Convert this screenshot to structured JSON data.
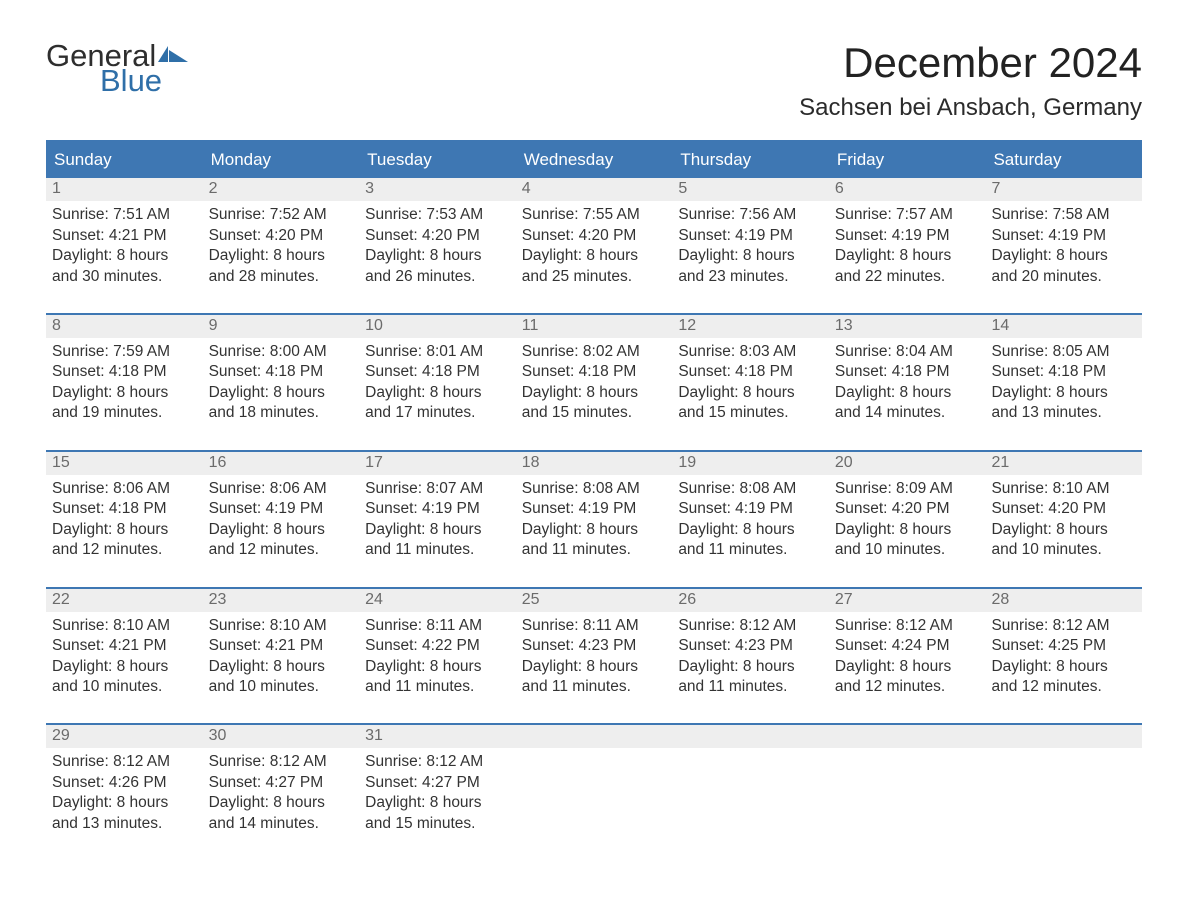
{
  "brand": {
    "word1": "General",
    "word2": "Blue",
    "flag_color": "#2f6fa8",
    "text1_color": "#2e2e2e"
  },
  "title": "December 2024",
  "location": "Sachsen bei Ansbach, Germany",
  "colors": {
    "header_bg": "#3e77b3",
    "header_text": "#ffffff",
    "row_divider": "#3e77b3",
    "daynum_bg": "#eeeeee",
    "daynum_text": "#6b6b6b",
    "body_text": "#333333",
    "page_bg": "#ffffff"
  },
  "typography": {
    "title_fontsize": 42,
    "location_fontsize": 24,
    "dayhead_fontsize": 17,
    "daynum_fontsize": 16,
    "body_fontsize": 15.5
  },
  "day_headers": [
    "Sunday",
    "Monday",
    "Tuesday",
    "Wednesday",
    "Thursday",
    "Friday",
    "Saturday"
  ],
  "weeks": [
    [
      {
        "n": "1",
        "sunrise": "Sunrise: 7:51 AM",
        "sunset": "Sunset: 4:21 PM",
        "d1": "Daylight: 8 hours",
        "d2": "and 30 minutes."
      },
      {
        "n": "2",
        "sunrise": "Sunrise: 7:52 AM",
        "sunset": "Sunset: 4:20 PM",
        "d1": "Daylight: 8 hours",
        "d2": "and 28 minutes."
      },
      {
        "n": "3",
        "sunrise": "Sunrise: 7:53 AM",
        "sunset": "Sunset: 4:20 PM",
        "d1": "Daylight: 8 hours",
        "d2": "and 26 minutes."
      },
      {
        "n": "4",
        "sunrise": "Sunrise: 7:55 AM",
        "sunset": "Sunset: 4:20 PM",
        "d1": "Daylight: 8 hours",
        "d2": "and 25 minutes."
      },
      {
        "n": "5",
        "sunrise": "Sunrise: 7:56 AM",
        "sunset": "Sunset: 4:19 PM",
        "d1": "Daylight: 8 hours",
        "d2": "and 23 minutes."
      },
      {
        "n": "6",
        "sunrise": "Sunrise: 7:57 AM",
        "sunset": "Sunset: 4:19 PM",
        "d1": "Daylight: 8 hours",
        "d2": "and 22 minutes."
      },
      {
        "n": "7",
        "sunrise": "Sunrise: 7:58 AM",
        "sunset": "Sunset: 4:19 PM",
        "d1": "Daylight: 8 hours",
        "d2": "and 20 minutes."
      }
    ],
    [
      {
        "n": "8",
        "sunrise": "Sunrise: 7:59 AM",
        "sunset": "Sunset: 4:18 PM",
        "d1": "Daylight: 8 hours",
        "d2": "and 19 minutes."
      },
      {
        "n": "9",
        "sunrise": "Sunrise: 8:00 AM",
        "sunset": "Sunset: 4:18 PM",
        "d1": "Daylight: 8 hours",
        "d2": "and 18 minutes."
      },
      {
        "n": "10",
        "sunrise": "Sunrise: 8:01 AM",
        "sunset": "Sunset: 4:18 PM",
        "d1": "Daylight: 8 hours",
        "d2": "and 17 minutes."
      },
      {
        "n": "11",
        "sunrise": "Sunrise: 8:02 AM",
        "sunset": "Sunset: 4:18 PM",
        "d1": "Daylight: 8 hours",
        "d2": "and 15 minutes."
      },
      {
        "n": "12",
        "sunrise": "Sunrise: 8:03 AM",
        "sunset": "Sunset: 4:18 PM",
        "d1": "Daylight: 8 hours",
        "d2": "and 15 minutes."
      },
      {
        "n": "13",
        "sunrise": "Sunrise: 8:04 AM",
        "sunset": "Sunset: 4:18 PM",
        "d1": "Daylight: 8 hours",
        "d2": "and 14 minutes."
      },
      {
        "n": "14",
        "sunrise": "Sunrise: 8:05 AM",
        "sunset": "Sunset: 4:18 PM",
        "d1": "Daylight: 8 hours",
        "d2": "and 13 minutes."
      }
    ],
    [
      {
        "n": "15",
        "sunrise": "Sunrise: 8:06 AM",
        "sunset": "Sunset: 4:18 PM",
        "d1": "Daylight: 8 hours",
        "d2": "and 12 minutes."
      },
      {
        "n": "16",
        "sunrise": "Sunrise: 8:06 AM",
        "sunset": "Sunset: 4:19 PM",
        "d1": "Daylight: 8 hours",
        "d2": "and 12 minutes."
      },
      {
        "n": "17",
        "sunrise": "Sunrise: 8:07 AM",
        "sunset": "Sunset: 4:19 PM",
        "d1": "Daylight: 8 hours",
        "d2": "and 11 minutes."
      },
      {
        "n": "18",
        "sunrise": "Sunrise: 8:08 AM",
        "sunset": "Sunset: 4:19 PM",
        "d1": "Daylight: 8 hours",
        "d2": "and 11 minutes."
      },
      {
        "n": "19",
        "sunrise": "Sunrise: 8:08 AM",
        "sunset": "Sunset: 4:19 PM",
        "d1": "Daylight: 8 hours",
        "d2": "and 11 minutes."
      },
      {
        "n": "20",
        "sunrise": "Sunrise: 8:09 AM",
        "sunset": "Sunset: 4:20 PM",
        "d1": "Daylight: 8 hours",
        "d2": "and 10 minutes."
      },
      {
        "n": "21",
        "sunrise": "Sunrise: 8:10 AM",
        "sunset": "Sunset: 4:20 PM",
        "d1": "Daylight: 8 hours",
        "d2": "and 10 minutes."
      }
    ],
    [
      {
        "n": "22",
        "sunrise": "Sunrise: 8:10 AM",
        "sunset": "Sunset: 4:21 PM",
        "d1": "Daylight: 8 hours",
        "d2": "and 10 minutes."
      },
      {
        "n": "23",
        "sunrise": "Sunrise: 8:10 AM",
        "sunset": "Sunset: 4:21 PM",
        "d1": "Daylight: 8 hours",
        "d2": "and 10 minutes."
      },
      {
        "n": "24",
        "sunrise": "Sunrise: 8:11 AM",
        "sunset": "Sunset: 4:22 PM",
        "d1": "Daylight: 8 hours",
        "d2": "and 11 minutes."
      },
      {
        "n": "25",
        "sunrise": "Sunrise: 8:11 AM",
        "sunset": "Sunset: 4:23 PM",
        "d1": "Daylight: 8 hours",
        "d2": "and 11 minutes."
      },
      {
        "n": "26",
        "sunrise": "Sunrise: 8:12 AM",
        "sunset": "Sunset: 4:23 PM",
        "d1": "Daylight: 8 hours",
        "d2": "and 11 minutes."
      },
      {
        "n": "27",
        "sunrise": "Sunrise: 8:12 AM",
        "sunset": "Sunset: 4:24 PM",
        "d1": "Daylight: 8 hours",
        "d2": "and 12 minutes."
      },
      {
        "n": "28",
        "sunrise": "Sunrise: 8:12 AM",
        "sunset": "Sunset: 4:25 PM",
        "d1": "Daylight: 8 hours",
        "d2": "and 12 minutes."
      }
    ],
    [
      {
        "n": "29",
        "sunrise": "Sunrise: 8:12 AM",
        "sunset": "Sunset: 4:26 PM",
        "d1": "Daylight: 8 hours",
        "d2": "and 13 minutes."
      },
      {
        "n": "30",
        "sunrise": "Sunrise: 8:12 AM",
        "sunset": "Sunset: 4:27 PM",
        "d1": "Daylight: 8 hours",
        "d2": "and 14 minutes."
      },
      {
        "n": "31",
        "sunrise": "Sunrise: 8:12 AM",
        "sunset": "Sunset: 4:27 PM",
        "d1": "Daylight: 8 hours",
        "d2": "and 15 minutes."
      },
      {
        "empty": true
      },
      {
        "empty": true
      },
      {
        "empty": true
      },
      {
        "empty": true
      }
    ]
  ]
}
